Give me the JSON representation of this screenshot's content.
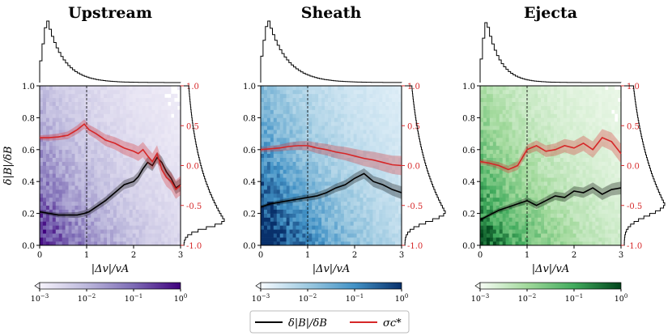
{
  "figure": {
    "legend": {
      "items": [
        {
          "label": "δ|B|/δB",
          "color": "#000000"
        },
        {
          "label": "σc*",
          "color": "#d62728"
        }
      ]
    }
  },
  "chart_data": [
    {
      "type": "heatmap",
      "title": "Upstream",
      "xlabel": "|Δv|/vA",
      "ylabel": "δ|B|/δB",
      "xlim": [
        0,
        3
      ],
      "ylim": [
        0,
        1
      ],
      "y2lim": [
        -1,
        1
      ],
      "xticks": [
        "0",
        "1",
        "2",
        "3"
      ],
      "yticks": [
        "0.0",
        "0.2",
        "0.4",
        "0.6",
        "0.8",
        "1.0"
      ],
      "y2ticks": [
        "-1.0",
        "-0.5",
        "0.0",
        "0.5",
        "1.0"
      ],
      "colormap": [
        "#f6f3fb",
        "#bcb8dc",
        "#7d6bb5",
        "#3f007d"
      ],
      "colorbar_ticks": [
        "10^-3",
        "10^-2",
        "10^-1",
        "10^0"
      ],
      "vline_x": 1,
      "series": [
        {
          "name": "δ|B|/δB",
          "axis": "left",
          "color": "#000000",
          "x": [
            0,
            0.2,
            0.4,
            0.6,
            0.8,
            0.95,
            1.05,
            1.2,
            1.4,
            1.6,
            1.8,
            2.0,
            2.1,
            2.2,
            2.3,
            2.4,
            2.5,
            2.6,
            2.7,
            2.8,
            2.9,
            3.0
          ],
          "y": [
            0.21,
            0.2,
            0.19,
            0.19,
            0.19,
            0.2,
            0.21,
            0.24,
            0.28,
            0.33,
            0.38,
            0.4,
            0.43,
            0.48,
            0.52,
            0.5,
            0.55,
            0.52,
            0.46,
            0.42,
            0.36,
            0.38
          ]
        },
        {
          "name": "σc*",
          "axis": "right",
          "color": "#d62728",
          "x": [
            0,
            0.2,
            0.4,
            0.6,
            0.8,
            0.95,
            1.05,
            1.2,
            1.4,
            1.6,
            1.8,
            2.0,
            2.1,
            2.2,
            2.3,
            2.4,
            2.5,
            2.6,
            2.7,
            2.8,
            2.9,
            3.0
          ],
          "y": [
            0.35,
            0.35,
            0.36,
            0.38,
            0.45,
            0.52,
            0.45,
            0.4,
            0.32,
            0.28,
            0.22,
            0.18,
            0.15,
            0.2,
            0.12,
            0.05,
            0.15,
            -0.05,
            -0.15,
            -0.2,
            -0.3,
            -0.25
          ]
        }
      ],
      "top_hist": {
        "peak_x": 0.15,
        "width": 0.18,
        "decay": 0.35
      },
      "right_hist": {
        "peak_y": 0.15,
        "width": 0.08,
        "decay": 0.4
      }
    },
    {
      "type": "heatmap",
      "title": "Sheath",
      "xlabel": "|Δv|/vA",
      "ylabel": "",
      "xlim": [
        0,
        3
      ],
      "ylim": [
        0,
        1
      ],
      "y2lim": [
        -1,
        1
      ],
      "xticks": [
        "0",
        "1",
        "2",
        "3"
      ],
      "yticks": [
        "0.0",
        "0.2",
        "0.4",
        "0.6",
        "0.8",
        "1.0"
      ],
      "y2ticks": [
        "-1.0",
        "-0.5",
        "0.0",
        "0.5",
        "1.0"
      ],
      "colormap": [
        "#f7fbff",
        "#9ecae1",
        "#4292c6",
        "#08306b"
      ],
      "colorbar_ticks": [
        "10^-3",
        "10^-2",
        "10^-1",
        "10^0"
      ],
      "vline_x": 1,
      "series": [
        {
          "name": "δ|B|/δB",
          "axis": "left",
          "color": "#000000",
          "x": [
            0,
            0.2,
            0.4,
            0.6,
            0.8,
            1.0,
            1.2,
            1.4,
            1.6,
            1.8,
            2.0,
            2.2,
            2.4,
            2.6,
            2.8,
            3.0
          ],
          "y": [
            0.24,
            0.26,
            0.27,
            0.28,
            0.29,
            0.3,
            0.31,
            0.33,
            0.36,
            0.38,
            0.42,
            0.45,
            0.4,
            0.38,
            0.35,
            0.33
          ]
        },
        {
          "name": "σc*",
          "axis": "right",
          "color": "#d62728",
          "x": [
            0,
            0.2,
            0.4,
            0.6,
            0.8,
            1.0,
            1.2,
            1.4,
            1.6,
            1.8,
            2.0,
            2.2,
            2.4,
            2.6,
            2.8,
            3.0
          ],
          "y": [
            0.2,
            0.21,
            0.22,
            0.24,
            0.25,
            0.25,
            0.22,
            0.2,
            0.17,
            0.15,
            0.12,
            0.09,
            0.07,
            0.04,
            0.01,
            0.0
          ]
        }
      ],
      "top_hist": {
        "peak_x": 0.15,
        "width": 0.2,
        "decay": 0.4
      },
      "right_hist": {
        "peak_y": 0.2,
        "width": 0.1,
        "decay": 0.45
      }
    },
    {
      "type": "heatmap",
      "title": "Ejecta",
      "xlabel": "|Δv|/vA",
      "ylabel": "",
      "xlim": [
        0,
        3
      ],
      "ylim": [
        0,
        1
      ],
      "y2lim": [
        -1,
        1
      ],
      "xticks": [
        "0",
        "1",
        "2",
        "3"
      ],
      "yticks": [
        "0.0",
        "0.2",
        "0.4",
        "0.6",
        "0.8",
        "1.0"
      ],
      "y2ticks": [
        "-1.0",
        "-0.5",
        "0.0",
        "0.5",
        "1.0"
      ],
      "colormap": [
        "#f7fcf5",
        "#a1d99b",
        "#41ab5d",
        "#00441b"
      ],
      "colorbar_ticks": [
        "10^-3",
        "10^-2",
        "10^-1",
        "10^0"
      ],
      "vline_x": 1,
      "series": [
        {
          "name": "δ|B|/δB",
          "axis": "left",
          "color": "#000000",
          "x": [
            0,
            0.2,
            0.4,
            0.6,
            0.8,
            1.0,
            1.2,
            1.4,
            1.6,
            1.8,
            2.0,
            2.2,
            2.4,
            2.6,
            2.8,
            3.0
          ],
          "y": [
            0.16,
            0.19,
            0.22,
            0.24,
            0.26,
            0.28,
            0.25,
            0.28,
            0.31,
            0.3,
            0.34,
            0.33,
            0.36,
            0.32,
            0.35,
            0.36
          ]
        },
        {
          "name": "σc*",
          "axis": "right",
          "color": "#d62728",
          "x": [
            0,
            0.2,
            0.4,
            0.6,
            0.8,
            1.0,
            1.2,
            1.4,
            1.6,
            1.8,
            2.0,
            2.2,
            2.4,
            2.6,
            2.8,
            3.0
          ],
          "y": [
            0.05,
            0.03,
            0.0,
            -0.05,
            0.0,
            0.2,
            0.25,
            0.18,
            0.2,
            0.25,
            0.22,
            0.28,
            0.2,
            0.35,
            0.3,
            0.15
          ]
        }
      ],
      "top_hist": {
        "peak_x": 0.12,
        "width": 0.15,
        "decay": 0.28
      },
      "right_hist": {
        "peak_y": 0.25,
        "width": 0.12,
        "decay": 0.5
      }
    }
  ]
}
